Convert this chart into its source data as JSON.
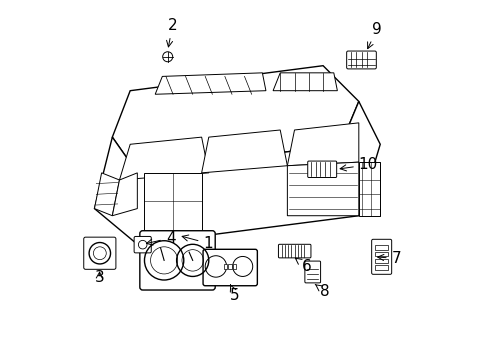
{
  "background_color": "#ffffff",
  "line_color": "#000000",
  "figsize": [
    4.89,
    3.6
  ],
  "dpi": 100,
  "font_size": 11
}
